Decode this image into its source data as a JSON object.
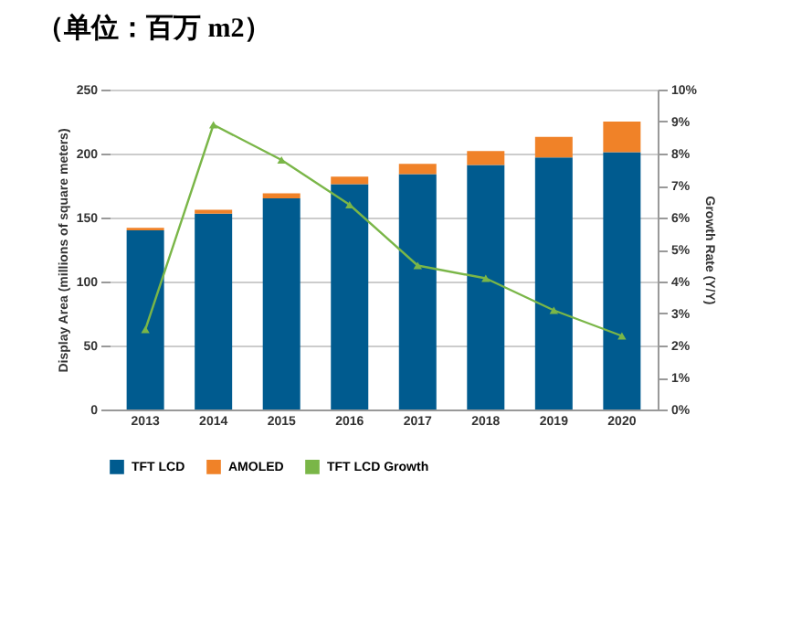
{
  "chart_data": {
    "type": "bar",
    "title": "（单位：百万 m2）",
    "ylabel": "Display Area (millions of square meters)",
    "y2label": "Growth Rate (Y/Y)",
    "categories": [
      "2013",
      "2014",
      "2015",
      "2016",
      "2017",
      "2018",
      "2019",
      "2020"
    ],
    "stacked": true,
    "series": [
      {
        "name": "TFT LCD",
        "color": "#005b8f",
        "values": [
          140,
          153,
          165,
          176,
          184,
          191,
          197,
          201
        ]
      },
      {
        "name": "AMOLED",
        "color": "#f08228",
        "values": [
          2,
          3,
          4,
          6,
          8,
          11,
          16,
          24
        ]
      },
      {
        "name": "TFT LCD Growth",
        "type": "line",
        "axis": "y2",
        "color": "#7ab648",
        "marker": "triangle",
        "values": [
          2.5,
          8.9,
          7.8,
          6.4,
          4.5,
          4.1,
          3.1,
          2.3
        ]
      }
    ],
    "ylim": [
      0,
      250
    ],
    "yticks": [
      0,
      50,
      100,
      150,
      200,
      250
    ],
    "y2lim": [
      0,
      10
    ],
    "y2ticks": [
      {
        "value": 0,
        "label": "0%"
      },
      {
        "value": 1,
        "label": "1%"
      },
      {
        "value": 2,
        "label": "2%"
      },
      {
        "value": 3,
        "label": "3%"
      },
      {
        "value": 4,
        "label": "4%"
      },
      {
        "value": 5,
        "label": "5%"
      },
      {
        "value": 6,
        "label": "6%"
      },
      {
        "value": 7,
        "label": "7%"
      },
      {
        "value": 8,
        "label": "8%"
      },
      {
        "value": 9,
        "label": "9%"
      },
      {
        "value": 10,
        "label": "10%"
      }
    ],
    "grid": "y",
    "legend": "bottom"
  }
}
